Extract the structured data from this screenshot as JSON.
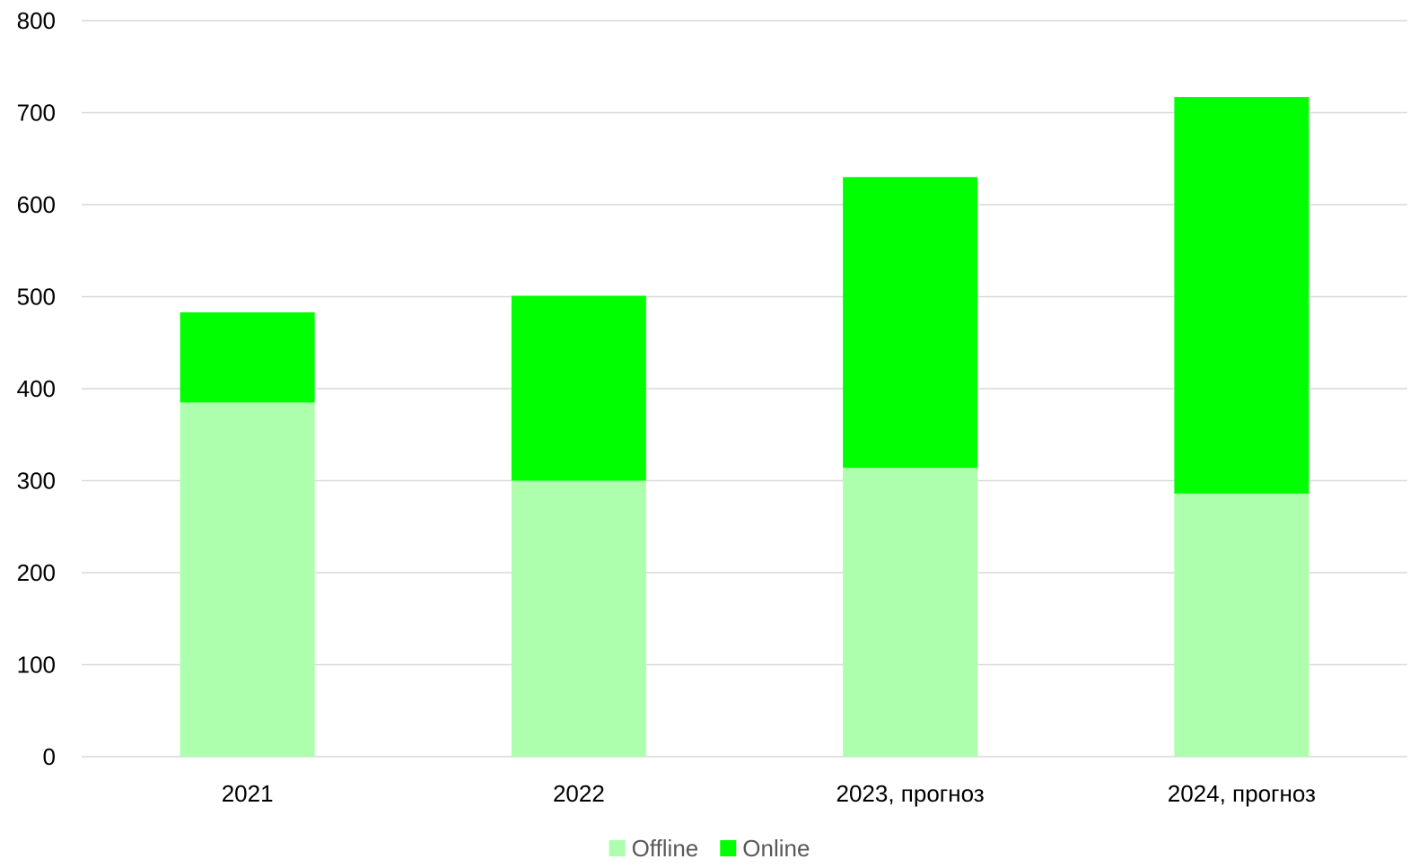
{
  "chart_data": {
    "type": "bar",
    "stacked": true,
    "categories": [
      "2021",
      "2022",
      "2023, прогноз",
      "2024, прогноз"
    ],
    "series": [
      {
        "name": "Offline",
        "color": "#adffad",
        "values": [
          385,
          300,
          314,
          286
        ]
      },
      {
        "name": "Online",
        "color": "#00ff00",
        "values": [
          98,
          201,
          316,
          431
        ]
      }
    ],
    "ylim": [
      0,
      800
    ],
    "yticks": [
      0,
      100,
      200,
      300,
      400,
      500,
      600,
      700,
      800
    ],
    "grid": true,
    "legend": "bottom-center",
    "title": "",
    "xlabel": "",
    "ylabel": ""
  }
}
